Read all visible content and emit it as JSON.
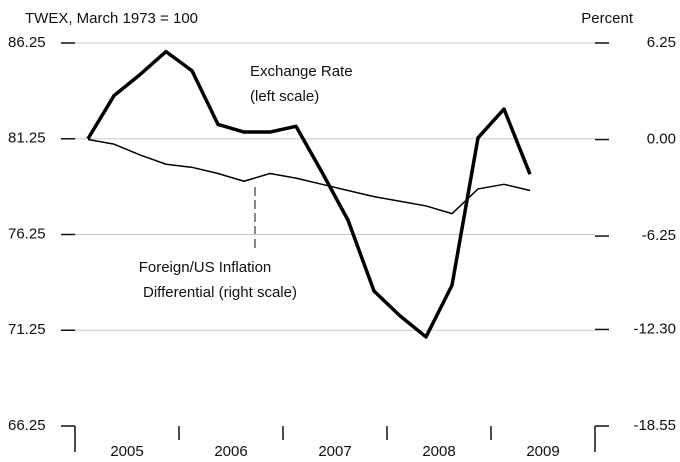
{
  "chart_data": {
    "type": "line",
    "y_axis_title": "TWEX, March 1973 = 100",
    "y2_axis_title": "Percent",
    "annotations": [
      "Exchange Rate",
      "(left scale)",
      "Foreign/US Inflation",
      "Differential (right scale)"
    ],
    "categories": [
      "2005",
      "2006",
      "2007",
      "2008",
      "2009"
    ],
    "xlim": [
      2005,
      2010
    ],
    "xticks": [
      2005,
      2006,
      2007,
      2008,
      2009,
      2010
    ],
    "ylim": [
      66.25,
      86.25
    ],
    "yticks": [
      66.25,
      71.25,
      76.25,
      81.25,
      86.25
    ],
    "y2lim": [
      -18.55,
      6.25
    ],
    "y2ticks": [
      -18.55,
      -12.3,
      -6.25,
      0.0,
      6.25
    ],
    "y2tick_labels": [
      "-18.55",
      "-12.30",
      "-6.25",
      "0.00",
      "6.25"
    ],
    "grid": true,
    "x": [
      2005.125,
      2005.375,
      2005.625,
      2005.875,
      2006.125,
      2006.375,
      2006.625,
      2006.875,
      2007.125,
      2007.375,
      2007.625,
      2007.875,
      2008.125,
      2008.375,
      2008.625,
      2008.875,
      2009.125,
      2009.375
    ],
    "series": [
      {
        "name": "Exchange Rate",
        "color": "#000000",
        "width": 3.5,
        "values": [
          81.25,
          83.5,
          84.6,
          85.8,
          84.8,
          82.0,
          81.6,
          81.6,
          81.9,
          79.5,
          77.0,
          73.3,
          72.0,
          70.9,
          73.6,
          81.3,
          82.8,
          79.4
        ]
      },
      {
        "name": "Foreign/US Inflation Differential",
        "color": "#000000",
        "width": 1.5,
        "axis": "y2",
        "values": [
          0.0,
          -0.3,
          -1.0,
          -1.6,
          -1.8,
          -2.2,
          -2.7,
          -2.2,
          -2.5,
          -2.9,
          -3.3,
          -3.7,
          -4.0,
          -4.3,
          -4.8,
          -3.2,
          -2.9,
          -3.3
        ]
      }
    ]
  }
}
